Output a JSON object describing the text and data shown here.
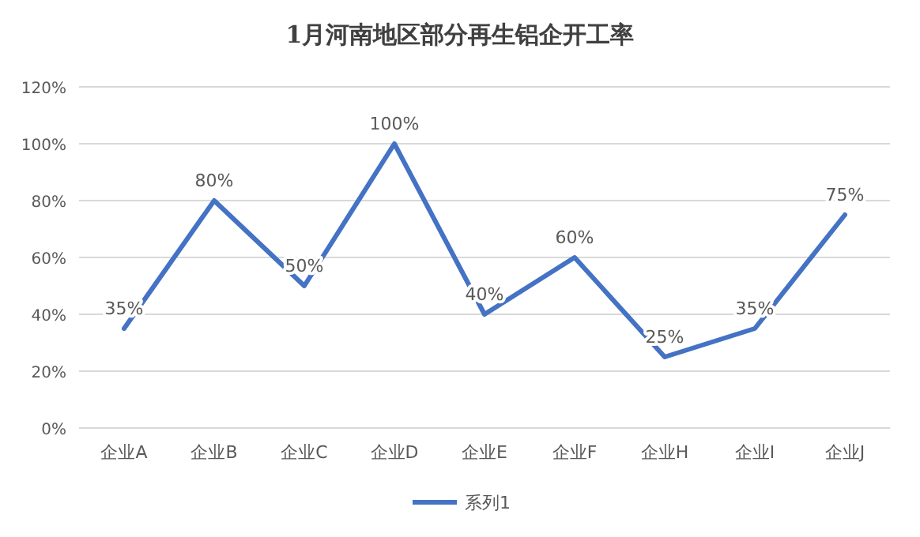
{
  "chart_data": {
    "type": "line",
    "title": "1月河南地区部分再生铝企开工率",
    "categories": [
      "企业A",
      "企业B",
      "企业C",
      "企业D",
      "企业E",
      "企业F",
      "企业H",
      "企业I",
      "企业J"
    ],
    "series": [
      {
        "name": "系列1",
        "color": "#4472c4",
        "values": [
          35,
          80,
          50,
          100,
          40,
          60,
          25,
          35,
          75
        ],
        "value_labels": [
          "35%",
          "80%",
          "50%",
          "100%",
          "40%",
          "60%",
          "25%",
          "35%",
          "75%"
        ]
      }
    ],
    "ylim": [
      0,
      120
    ],
    "yticks": [
      {
        "value": 0,
        "label": "0%"
      },
      {
        "value": 20,
        "label": "20%"
      },
      {
        "value": 40,
        "label": "40%"
      },
      {
        "value": 60,
        "label": "60%"
      },
      {
        "value": 80,
        "label": "80%"
      },
      {
        "value": 100,
        "label": "100%"
      },
      {
        "value": 120,
        "label": "120%"
      }
    ],
    "grid": "y",
    "legend": "bottom"
  }
}
